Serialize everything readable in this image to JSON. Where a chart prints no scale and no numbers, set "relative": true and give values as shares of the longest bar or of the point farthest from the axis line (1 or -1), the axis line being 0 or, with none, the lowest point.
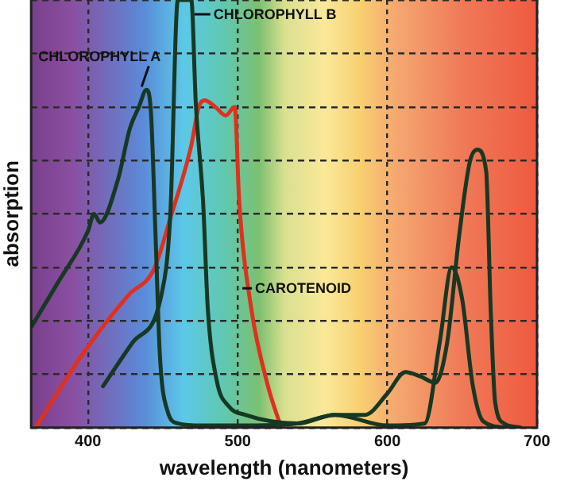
{
  "chart_data": {
    "type": "line",
    "relative": true,
    "xlabel": "wavelength (nanometers)",
    "ylabel": "absorption",
    "xlim": [
      362,
      700
    ],
    "xticks": [
      400,
      500,
      600,
      700
    ],
    "grid": true,
    "legend": false,
    "marker": "none",
    "line_style": "solid",
    "series": [
      {
        "name": "CHLOROPHYLL A",
        "color": "#173823",
        "x": [
          362,
          380,
          400,
          404,
          408,
          420,
          428,
          434,
          439,
          442,
          445,
          448,
          453,
          460,
          476,
          500,
          540,
          565,
          585,
          600,
          612,
          622,
          632,
          640,
          648,
          655,
          660,
          666,
          669,
          672,
          678,
          689
        ],
        "values": [
          0.235,
          0.34,
          0.46,
          0.5,
          0.48,
          0.58,
          0.7,
          0.75,
          0.79,
          0.74,
          0.46,
          0.17,
          0.04,
          0.01,
          0.005,
          0.005,
          0.01,
          0.03,
          0.03,
          0.08,
          0.13,
          0.12,
          0.105,
          0.2,
          0.45,
          0.62,
          0.65,
          0.6,
          0.28,
          0.06,
          0.01,
          0
        ]
      },
      {
        "name": "CHLOROPHYLL B",
        "color": "#173823",
        "x": [
          410,
          430,
          449,
          455,
          460,
          469,
          472,
          477,
          480,
          486,
          494,
          505,
          540,
          565,
          600,
          625,
          635,
          643,
          650,
          657,
          664,
          680
        ],
        "values": [
          0.097,
          0.2,
          0.31,
          0.5,
          1,
          1,
          0.76,
          0.52,
          0.28,
          0.11,
          0.05,
          0.03,
          0.01,
          0.03,
          0.005,
          0.01,
          0.2,
          0.375,
          0.3,
          0.1,
          0.015,
          0
        ]
      },
      {
        "name": "CAROTENOID",
        "color": "#e0301e",
        "x": [
          365,
          396,
          427,
          444,
          455,
          469,
          474,
          478,
          485,
          492,
          498,
          501,
          509,
          520,
          529
        ],
        "values": [
          0,
          0.17,
          0.31,
          0.37,
          0.49,
          0.66,
          0.75,
          0.765,
          0.75,
          0.73,
          0.75,
          0.53,
          0.28,
          0.1,
          0
        ]
      }
    ]
  }
}
